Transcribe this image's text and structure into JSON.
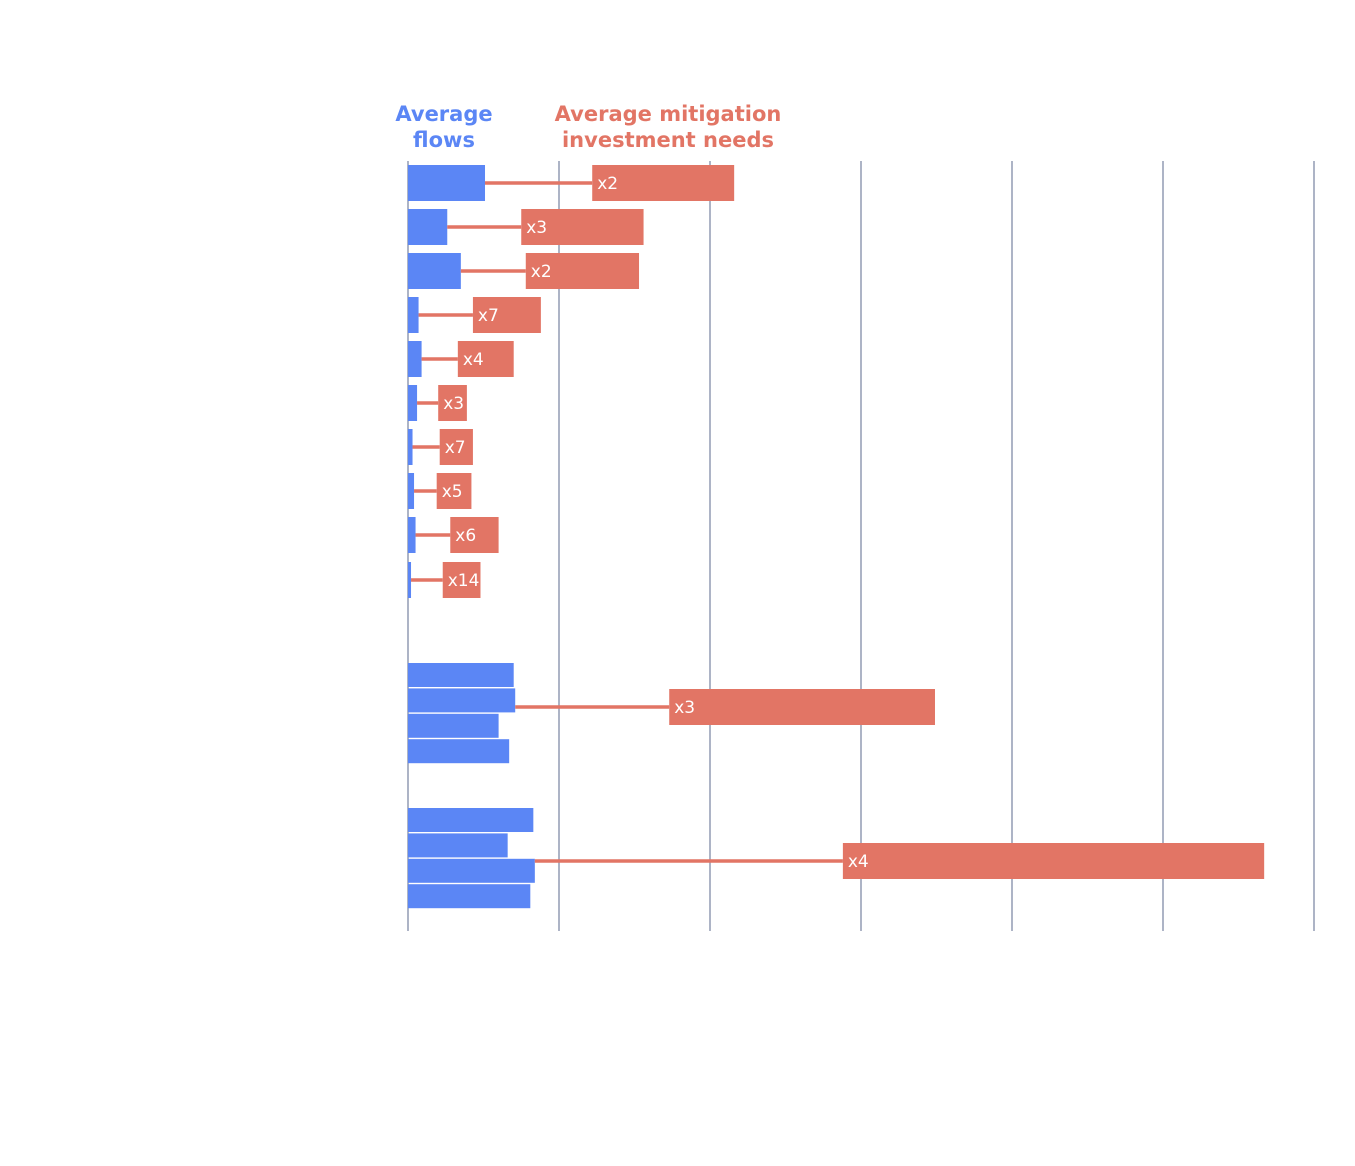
{
  "colors": {
    "flows": "#5b86f5",
    "needs": "#e27565",
    "grid": "#5b6a8c",
    "label": "#ffffff"
  },
  "legend": {
    "flows": "Average flows",
    "needs": "Average mitigation investment needs"
  },
  "chart_data": {
    "type": "bar",
    "title": "",
    "xlabel": "",
    "ylabel": "",
    "xlim": [
      0,
      6
    ],
    "grid": "vertical",
    "series": [
      {
        "name": "Average flows",
        "role": "flows"
      },
      {
        "name": "Average mitigation investment needs",
        "role": "needs"
      }
    ],
    "groups": [
      {
        "flows": [
          0.51
        ],
        "needs": [
          {
            "start": 1.22,
            "end": 2.16
          }
        ],
        "multiplier": "x2"
      },
      {
        "flows": [
          0.26
        ],
        "needs": [
          {
            "start": 0.75,
            "end": 1.56
          }
        ],
        "multiplier": "x3"
      },
      {
        "flows": [
          0.35
        ],
        "needs": [
          {
            "start": 0.78,
            "end": 1.53
          }
        ],
        "multiplier": "x2"
      },
      {
        "flows": [
          0.07
        ],
        "needs": [
          {
            "start": 0.43,
            "end": 0.88
          }
        ],
        "multiplier": "x7"
      },
      {
        "flows": [
          0.09
        ],
        "needs": [
          {
            "start": 0.33,
            "end": 0.7
          }
        ],
        "multiplier": "x4"
      },
      {
        "flows": [
          0.06
        ],
        "needs": [
          {
            "start": 0.2,
            "end": 0.39
          }
        ],
        "multiplier": "x3"
      },
      {
        "flows": [
          0.03
        ],
        "needs": [
          {
            "start": 0.21,
            "end": 0.43
          }
        ],
        "multiplier": "x7"
      },
      {
        "flows": [
          0.04
        ],
        "needs": [
          {
            "start": 0.19,
            "end": 0.42
          }
        ],
        "multiplier": "x5"
      },
      {
        "flows": [
          0.05
        ],
        "needs": [
          {
            "start": 0.28,
            "end": 0.6
          }
        ],
        "multiplier": "x6"
      },
      {
        "flows": [
          0.02
        ],
        "needs": [
          {
            "start": 0.23,
            "end": 0.48
          }
        ],
        "multiplier": "x14"
      },
      {
        "flows": [
          0.7,
          0.71,
          0.6,
          0.67
        ],
        "needs": [
          {
            "start": 1.73,
            "end": 3.49
          }
        ],
        "multiplier": "x3"
      },
      {
        "flows": [
          0.83,
          0.66,
          0.84,
          0.81
        ],
        "needs": [
          {
            "start": 2.88,
            "end": 5.67
          }
        ],
        "multiplier": "x4"
      }
    ]
  }
}
